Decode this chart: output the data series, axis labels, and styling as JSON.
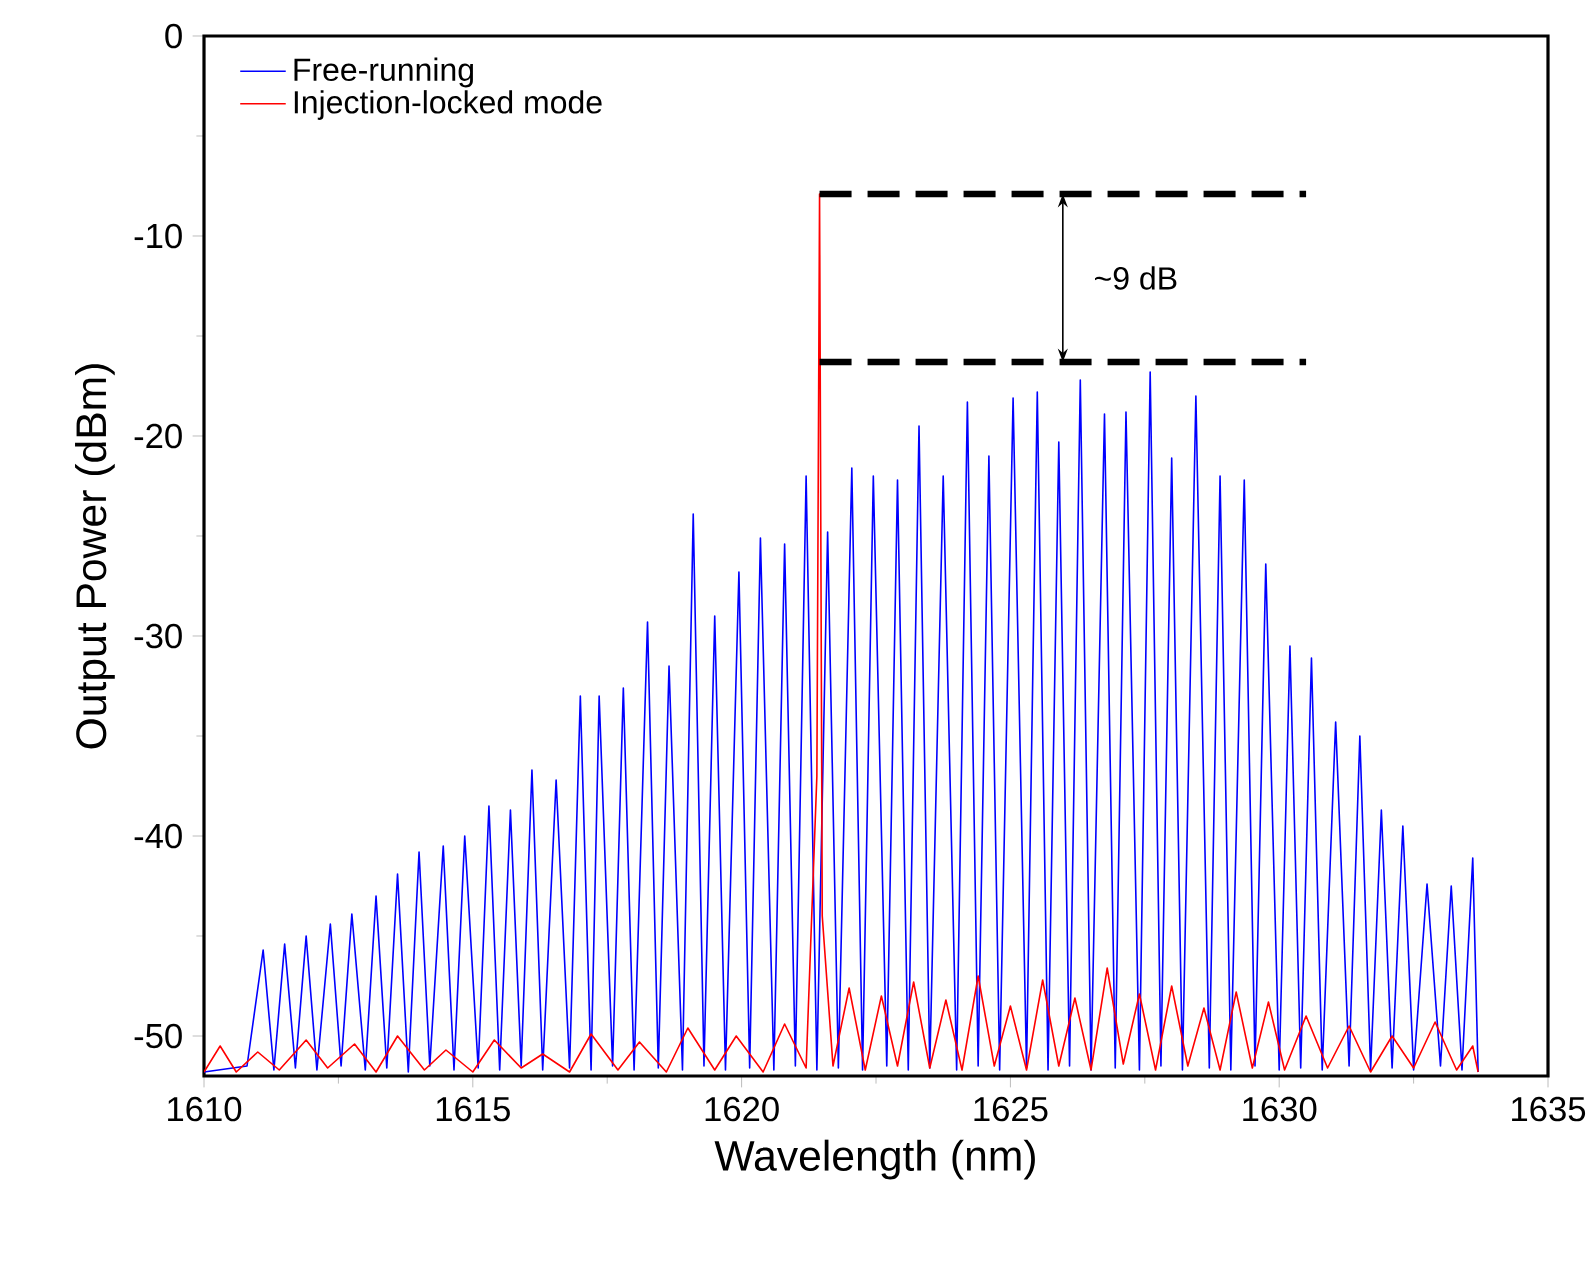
{
  "chart_data": {
    "type": "line",
    "xlabel": "Wavelength (nm)",
    "ylabel": "Output Power (dBm)",
    "xlim": [
      1610,
      1635
    ],
    "ylim": [
      -52,
      0
    ],
    "xticks": [
      1610,
      1615,
      1620,
      1625,
      1630,
      1635
    ],
    "yticks": [
      -50,
      -40,
      -30,
      -20,
      -10,
      0
    ],
    "legend": "top left",
    "series": [
      {
        "name": "Free-running",
        "color": "#0000ff",
        "x": [
          1610.0,
          1610.8,
          1611.1,
          1611.3,
          1611.5,
          1611.7,
          1611.9,
          1612.1,
          1612.35,
          1612.55,
          1612.75,
          1613.0,
          1613.2,
          1613.4,
          1613.6,
          1613.8,
          1614.0,
          1614.2,
          1614.45,
          1614.65,
          1614.85,
          1615.1,
          1615.3,
          1615.5,
          1615.7,
          1615.9,
          1616.1,
          1616.3,
          1616.55,
          1616.8,
          1617.0,
          1617.2,
          1617.35,
          1617.6,
          1617.8,
          1618.0,
          1618.25,
          1618.45,
          1618.65,
          1618.9,
          1619.1,
          1619.3,
          1619.5,
          1619.7,
          1619.95,
          1620.15,
          1620.35,
          1620.6,
          1620.8,
          1621.0,
          1621.2,
          1621.4,
          1621.6,
          1621.8,
          1622.05,
          1622.25,
          1622.45,
          1622.7,
          1622.9,
          1623.1,
          1623.3,
          1623.5,
          1623.75,
          1624.0,
          1624.2,
          1624.4,
          1624.6,
          1624.8,
          1625.05,
          1625.3,
          1625.5,
          1625.7,
          1625.9,
          1626.1,
          1626.3,
          1626.5,
          1626.75,
          1626.95,
          1627.15,
          1627.4,
          1627.6,
          1627.8,
          1628.0,
          1628.2,
          1628.45,
          1628.7,
          1628.9,
          1629.1,
          1629.35,
          1629.55,
          1629.75,
          1630.0,
          1630.2,
          1630.4,
          1630.6,
          1630.8,
          1631.05,
          1631.3,
          1631.5,
          1631.7,
          1631.9,
          1632.1,
          1632.3,
          1632.5,
          1632.75,
          1633.0,
          1633.2,
          1633.4,
          1633.6,
          1633.7
        ],
        "values": [
          -51.8,
          -51.5,
          -45.7,
          -51.7,
          -45.4,
          -51.6,
          -45.0,
          -51.7,
          -44.4,
          -51.5,
          -43.9,
          -51.7,
          -43.0,
          -51.6,
          -41.9,
          -51.8,
          -40.8,
          -51.5,
          -40.5,
          -51.7,
          -40.0,
          -51.6,
          -38.5,
          -51.7,
          -38.7,
          -51.5,
          -36.7,
          -51.7,
          -37.2,
          -51.6,
          -33.0,
          -51.7,
          -33.0,
          -51.5,
          -32.6,
          -51.7,
          -29.3,
          -51.6,
          -31.5,
          -51.7,
          -23.9,
          -51.5,
          -29.0,
          -51.7,
          -26.8,
          -51.6,
          -25.1,
          -51.7,
          -25.4,
          -51.5,
          -22.0,
          -51.7,
          -24.8,
          -51.6,
          -21.6,
          -51.7,
          -22.0,
          -51.5,
          -22.2,
          -51.7,
          -19.5,
          -51.6,
          -22.0,
          -51.7,
          -18.3,
          -51.5,
          -21.0,
          -51.7,
          -18.1,
          -51.6,
          -17.8,
          -51.7,
          -20.3,
          -51.5,
          -17.2,
          -51.7,
          -18.9,
          -51.6,
          -18.8,
          -51.7,
          -16.8,
          -51.5,
          -21.1,
          -51.7,
          -18.0,
          -51.6,
          -22.0,
          -51.7,
          -22.2,
          -51.5,
          -26.4,
          -51.7,
          -30.5,
          -51.6,
          -31.1,
          -51.7,
          -34.3,
          -51.5,
          -35.0,
          -51.7,
          -38.7,
          -51.6,
          -39.5,
          -51.7,
          -42.4,
          -51.5,
          -42.5,
          -51.7,
          -41.1,
          -51.8
        ]
      },
      {
        "name": "Injection-locked mode",
        "color": "#ff0000",
        "x": [
          1610.0,
          1610.3,
          1610.6,
          1611.0,
          1611.4,
          1611.9,
          1612.3,
          1612.8,
          1613.2,
          1613.6,
          1614.1,
          1614.5,
          1615.0,
          1615.4,
          1615.9,
          1616.3,
          1616.8,
          1617.2,
          1617.7,
          1618.1,
          1618.6,
          1619.0,
          1619.5,
          1619.9,
          1620.4,
          1620.8,
          1621.2,
          1621.4,
          1621.45,
          1621.5,
          1621.7,
          1622.0,
          1622.3,
          1622.6,
          1622.9,
          1623.2,
          1623.5,
          1623.8,
          1624.1,
          1624.4,
          1624.7,
          1625.0,
          1625.3,
          1625.6,
          1625.9,
          1626.2,
          1626.5,
          1626.8,
          1627.1,
          1627.4,
          1627.7,
          1628.0,
          1628.3,
          1628.6,
          1628.9,
          1629.2,
          1629.5,
          1629.8,
          1630.1,
          1630.5,
          1630.9,
          1631.3,
          1631.7,
          1632.1,
          1632.5,
          1632.9,
          1633.3,
          1633.6,
          1633.7
        ],
        "values": [
          -51.8,
          -50.5,
          -51.8,
          -50.8,
          -51.7,
          -50.2,
          -51.6,
          -50.4,
          -51.8,
          -50.0,
          -51.7,
          -50.7,
          -51.8,
          -50.2,
          -51.6,
          -50.9,
          -51.8,
          -49.9,
          -51.7,
          -50.3,
          -51.8,
          -49.6,
          -51.7,
          -50.0,
          -51.8,
          -49.4,
          -51.6,
          -37.0,
          -7.9,
          -44.0,
          -51.5,
          -47.6,
          -51.7,
          -48.0,
          -51.5,
          -47.3,
          -51.6,
          -48.2,
          -51.7,
          -47.0,
          -51.5,
          -48.5,
          -51.7,
          -47.2,
          -51.5,
          -48.1,
          -51.7,
          -46.6,
          -51.4,
          -47.9,
          -51.7,
          -47.5,
          -51.5,
          -48.6,
          -51.7,
          -47.8,
          -51.6,
          -48.3,
          -51.7,
          -49.0,
          -51.6,
          -49.5,
          -51.8,
          -50.0,
          -51.6,
          -49.3,
          -51.7,
          -50.5,
          -51.8
        ]
      }
    ],
    "ref_lines": [
      {
        "axis": "y",
        "value": -7.9,
        "line_style": "dashed",
        "color": "#000000"
      },
      {
        "axis": "y",
        "value": -16.3,
        "line_style": "dashed",
        "color": "#000000"
      }
    ],
    "annotations": [
      "~9 dB"
    ]
  }
}
